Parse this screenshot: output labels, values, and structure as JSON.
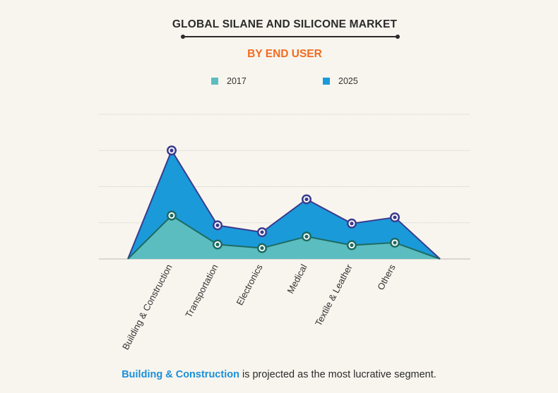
{
  "title": "GLOBAL SILANE AND SILICONE MARKET",
  "subtitle": "BY END USER",
  "colors": {
    "title": "#2b2b2b",
    "subtitle": "#f26b21",
    "series_2017": "#5bbdc0",
    "series_2025": "#1a9ad9",
    "outline_2017": "#1e6b62",
    "outline_2025": "#3b3b8f",
    "highlight": "#1a8fd8"
  },
  "footer": {
    "highlight": "Building & Construction",
    "rest": " is projected as the most lucrative segment."
  },
  "chart_data": {
    "type": "area",
    "categories": [
      "Building & Construction",
      "Transportation",
      "Electronics",
      "Medical",
      "Textile & Leather",
      "Others"
    ],
    "series": [
      {
        "name": "2017",
        "values": [
          1.2,
          0.4,
          0.3,
          0.62,
          0.38,
          0.45
        ]
      },
      {
        "name": "2025",
        "values": [
          3.0,
          0.93,
          0.74,
          1.65,
          0.98,
          1.15
        ]
      }
    ],
    "ylim": [
      0,
      4
    ],
    "grid": true,
    "legend_position": "top",
    "title": "GLOBAL SILANE AND SILICONE MARKET",
    "xlabel": "",
    "ylabel": ""
  }
}
